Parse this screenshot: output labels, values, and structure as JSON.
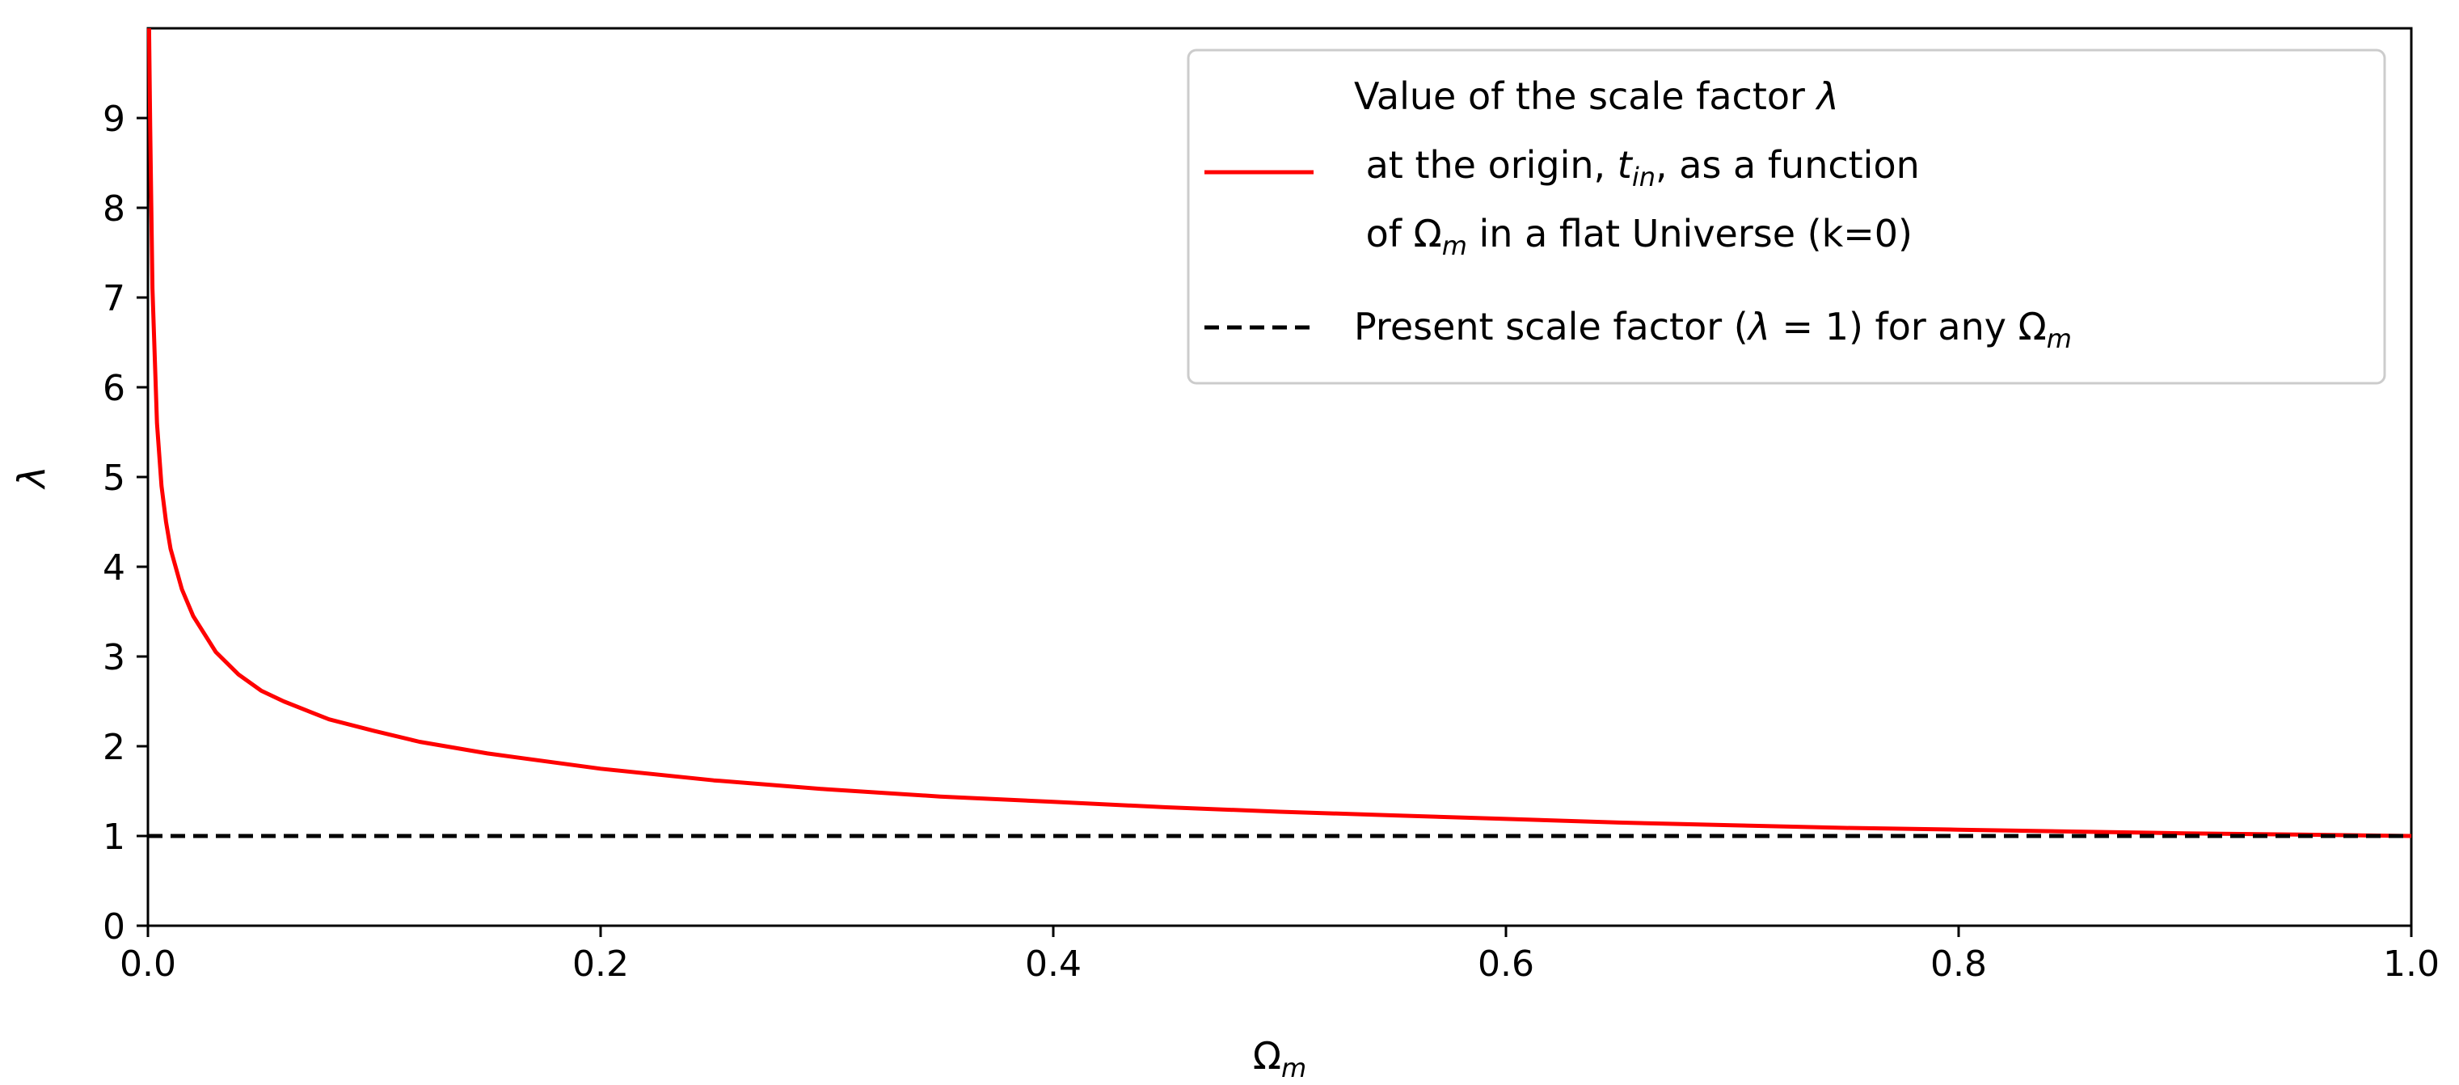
{
  "chart_data": {
    "type": "line",
    "title": "",
    "xlabel": {
      "base": "Ω",
      "sub": "m"
    },
    "ylabel": "λ",
    "xlim": [
      0.0,
      1.0
    ],
    "ylim": [
      0,
      10
    ],
    "x_ticks": [
      "0.0",
      "0.2",
      "0.4",
      "0.6",
      "0.8",
      "1.0"
    ],
    "x_tick_values": [
      0.0,
      0.2,
      0.4,
      0.6,
      0.8,
      1.0
    ],
    "y_ticks": [
      "0",
      "1",
      "2",
      "3",
      "4",
      "5",
      "6",
      "7",
      "8",
      "9"
    ],
    "y_tick_values": [
      0,
      1,
      2,
      3,
      4,
      5,
      6,
      7,
      8,
      9
    ],
    "grid": false,
    "legend_position": "top-right",
    "series": [
      {
        "id": "scale-factor-origin",
        "color": "#ff0000",
        "style": "solid",
        "legend": {
          "line1_text": "Value of the scale factor ",
          "line1_var": "λ",
          "line2_pre": " at the origin, ",
          "line2_var": "t",
          "line2_sub": "in",
          "line2_post": ", as a function",
          "line3_pre": " of Ω",
          "line3_sub": "m",
          "line3_post": " in a flat Universe (k=0)"
        },
        "points": [
          [
            0.0005,
            10.0
          ],
          [
            0.001,
            8.9
          ],
          [
            0.002,
            7.1
          ],
          [
            0.004,
            5.6
          ],
          [
            0.006,
            4.9
          ],
          [
            0.008,
            4.5
          ],
          [
            0.01,
            4.2
          ],
          [
            0.015,
            3.75
          ],
          [
            0.02,
            3.45
          ],
          [
            0.03,
            3.05
          ],
          [
            0.04,
            2.8
          ],
          [
            0.05,
            2.62
          ],
          [
            0.06,
            2.5
          ],
          [
            0.08,
            2.3
          ],
          [
            0.1,
            2.17
          ],
          [
            0.12,
            2.05
          ],
          [
            0.15,
            1.92
          ],
          [
            0.2,
            1.75
          ],
          [
            0.25,
            1.62
          ],
          [
            0.3,
            1.52
          ],
          [
            0.35,
            1.44
          ],
          [
            0.4,
            1.38
          ],
          [
            0.45,
            1.32
          ],
          [
            0.5,
            1.27
          ],
          [
            0.55,
            1.23
          ],
          [
            0.6,
            1.19
          ],
          [
            0.65,
            1.15
          ],
          [
            0.7,
            1.12
          ],
          [
            0.75,
            1.09
          ],
          [
            0.8,
            1.07
          ],
          [
            0.85,
            1.05
          ],
          [
            0.9,
            1.03
          ],
          [
            0.95,
            1.015
          ],
          [
            1.0,
            1.0
          ]
        ]
      },
      {
        "id": "present-scale-factor",
        "color": "#000000",
        "style": "dashed",
        "legend": {
          "pre": "Present scale factor (",
          "var": "λ",
          "mid": " = 1) for any Ω",
          "sub": "m"
        },
        "points": [
          [
            0.0,
            1.0
          ],
          [
            1.0,
            1.0
          ]
        ]
      }
    ]
  }
}
